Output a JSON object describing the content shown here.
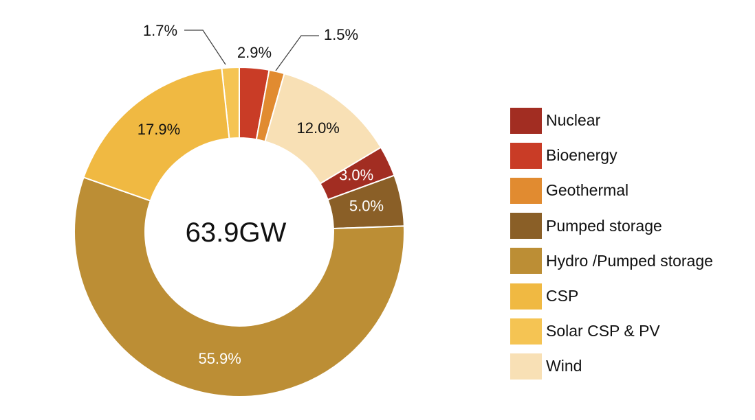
{
  "chart_data": {
    "type": "pie",
    "donut": true,
    "center_label": "63.9GW",
    "legend_placement": "right",
    "slices": [
      {
        "name": "Solar CSP & PV",
        "value": 1.7,
        "label": "1.7%",
        "color": "#f5c453",
        "label_color": "#111111",
        "callout": true
      },
      {
        "name": "Bioenergy",
        "value": 2.9,
        "label": "2.9%",
        "color": "#c93c26",
        "label_color": "#111111",
        "callout": true
      },
      {
        "name": "Geothermal",
        "value": 1.5,
        "label": "1.5%",
        "color": "#e18b30",
        "label_color": "#111111",
        "callout": true
      },
      {
        "name": "Wind",
        "value": 12.0,
        "label": "12.0%",
        "color": "#f8e0b5",
        "label_color": "#111111",
        "callout": false
      },
      {
        "name": "Nuclear",
        "value": 3.0,
        "label": "3.0%",
        "color": "#a22d22",
        "label_color": "#ffffff",
        "callout": false
      },
      {
        "name": "Pumped storage",
        "value": 5.0,
        "label": "5.0%",
        "color": "#8a5f27",
        "label_color": "#ffffff",
        "callout": false
      },
      {
        "name": "Hydro /Pumped storage",
        "value": 55.9,
        "label": "55.9%",
        "color": "#bc8e35",
        "label_color": "#ffffff",
        "callout": false
      },
      {
        "name": "CSP",
        "value": 17.9,
        "label": "17.9%",
        "color": "#f0b942",
        "label_color": "#111111",
        "callout": false
      }
    ],
    "legend": [
      {
        "label": "Nuclear",
        "color": "#a22d22"
      },
      {
        "label": "Bioenergy",
        "color": "#c93c26"
      },
      {
        "label": "Geothermal",
        "color": "#e18b30"
      },
      {
        "label": "Pumped storage",
        "color": "#8a5f27"
      },
      {
        "label": "Hydro /Pumped storage",
        "color": "#bc8e35"
      },
      {
        "label": "CSP",
        "color": "#f0b942"
      },
      {
        "label": "Solar CSP & PV",
        "color": "#f5c453"
      },
      {
        "label": "Wind",
        "color": "#f8e0b5"
      }
    ]
  }
}
